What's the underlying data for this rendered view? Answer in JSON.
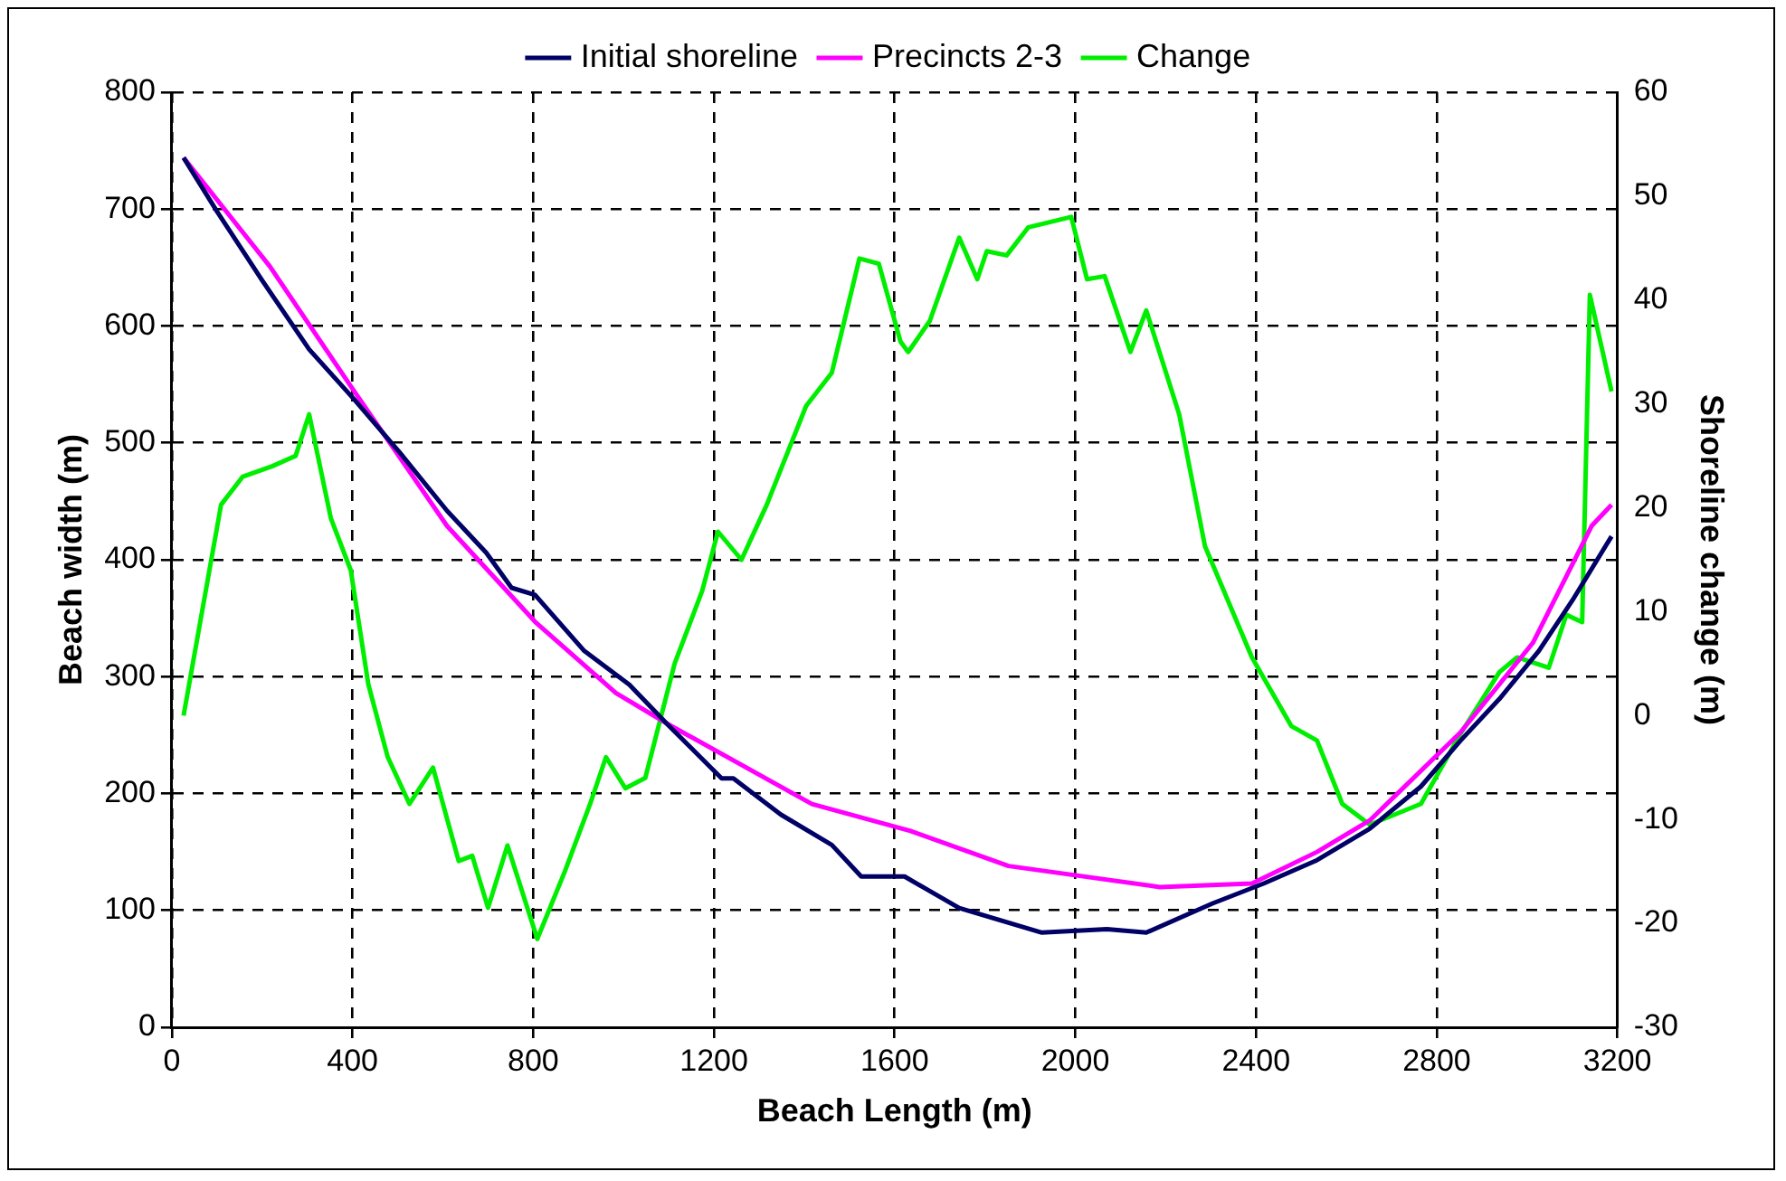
{
  "chart_data": {
    "type": "line",
    "xlabel": "Beach Length (m)",
    "ylabel": "Beach width (m)",
    "y2label": "Shoreline change (m)",
    "xlim": [
      0,
      3200
    ],
    "xticks": [
      0,
      400,
      800,
      1200,
      1600,
      2000,
      2400,
      2800,
      3200
    ],
    "ylim": [
      0,
      800
    ],
    "yticks": [
      0,
      100,
      200,
      300,
      400,
      500,
      600,
      700,
      800
    ],
    "y2lim": [
      -30,
      60
    ],
    "y2ticks": [
      -30,
      -20,
      -10,
      0,
      10,
      20,
      30,
      40,
      50,
      60
    ],
    "grid": true,
    "legend": "top",
    "marker": "none",
    "line_style": "solid",
    "series": [
      {
        "name": "Initial shoreline",
        "color": "#000066",
        "x": [
          26,
          100,
          200,
          304,
          404,
          504,
          609,
          696,
          752,
          804,
          913,
          1013,
          1100,
          1217,
          1243,
          1348,
          1461,
          1526,
          1622,
          1743,
          1926,
          2070,
          2157,
          2304,
          2417,
          2535,
          2652,
          2765,
          2852,
          2939,
          3026,
          3100,
          3187
        ],
        "values": [
          744,
          698,
          639,
          580,
          537,
          492,
          442,
          406,
          376,
          370,
          322,
          293,
          258,
          213,
          213,
          182,
          156,
          129,
          129,
          102,
          81,
          84,
          81,
          106,
          123,
          143,
          170,
          206,
          245,
          281,
          322,
          365,
          420
        ]
      },
      {
        "name": "Precincts 2-3",
        "color": "#ff00ff",
        "x": [
          26,
          217,
          404,
          609,
          804,
          983,
          1100,
          1417,
          1635,
          1852,
          2187,
          2391,
          2535,
          2652,
          2852,
          3013,
          3143,
          3187
        ],
        "values": [
          744,
          651,
          544,
          429,
          347,
          286,
          259,
          191,
          168,
          138,
          120,
          123,
          150,
          177,
          252,
          329,
          429,
          447
        ]
      },
      {
        "name": "Change",
        "color": "#00ee00",
        "axis": "y2",
        "x": [
          26,
          109,
          157,
          222,
          274,
          304,
          352,
          396,
          435,
          478,
          526,
          578,
          635,
          665,
          700,
          743,
          809,
          870,
          926,
          961,
          1004,
          1048,
          1113,
          1174,
          1209,
          1261,
          1317,
          1404,
          1461,
          1522,
          1565,
          1613,
          1630,
          1678,
          1743,
          1783,
          1804,
          1848,
          1896,
          1991,
          2026,
          2065,
          2122,
          2157,
          2230,
          2287,
          2391,
          2478,
          2535,
          2591,
          2652,
          2765,
          2852,
          2939,
          2978,
          3048,
          3087,
          3122,
          3139,
          3187
        ],
        "values": [
          0,
          20.3,
          23,
          24,
          25,
          29,
          19,
          14,
          3,
          -4,
          -8.5,
          -5,
          -14,
          -13.5,
          -18.5,
          -12.5,
          -21.5,
          -15,
          -8.5,
          -4,
          -7,
          -6,
          5,
          12,
          17.7,
          15,
          20.3,
          29.8,
          33,
          44,
          43.5,
          36,
          35,
          38,
          46,
          42,
          44.7,
          44.3,
          47,
          48,
          42,
          42.3,
          35,
          39,
          29,
          16.3,
          5.6,
          -1,
          -2.4,
          -8.5,
          -10.5,
          -8.5,
          -1.8,
          4.2,
          5.6,
          4.6,
          9.7,
          9,
          40.5,
          31.2
        ]
      }
    ]
  }
}
